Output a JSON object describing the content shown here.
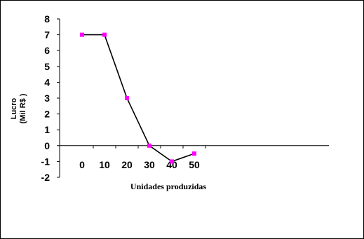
{
  "chart_data": {
    "type": "line",
    "x": [
      0,
      10,
      20,
      30,
      40,
      50
    ],
    "series": [
      {
        "values": [
          7,
          7,
          3,
          0,
          -1,
          -0.5
        ]
      }
    ],
    "xlabel": "Unidades produzidas",
    "ylabel_line1": "Lucro",
    "ylabel_line2": "(Mil R$ )",
    "ylim": [
      -2,
      8
    ],
    "xlim": [
      0,
      50
    ],
    "yticks": [
      8,
      7,
      6,
      5,
      4,
      3,
      2,
      1,
      0,
      -1,
      -2
    ],
    "xticks": [
      0,
      10,
      20,
      30,
      40,
      50
    ],
    "grid": false,
    "legend": "none",
    "line_color": "#000000",
    "marker_color": "#FF00FF"
  }
}
